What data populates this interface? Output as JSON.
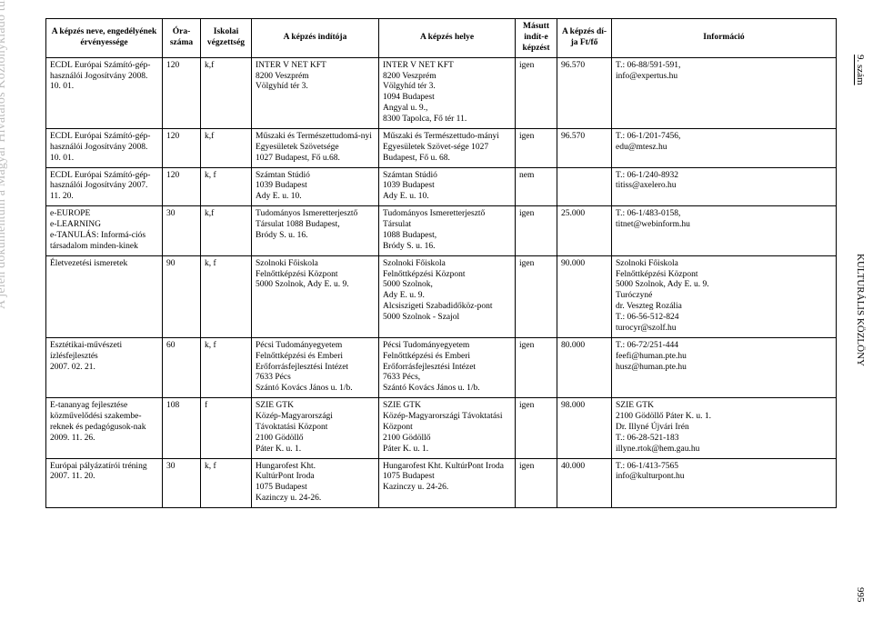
{
  "page": {
    "watermark": "A jelen dokumentum a Magyar Hivatalos Közlönykiadó tulajdona, további üzleti célú felhasználása tilos!",
    "right_top": "9. szám",
    "right_mid": "KULTURÁLIS KÖZLÖNY",
    "right_bottom": "995"
  },
  "headers": {
    "name": "A képzés neve, engedélyének érvényessége",
    "ora": "Óra-száma",
    "isk": "Iskolai végzettség",
    "indito": "A képzés indítója",
    "hely": "A képzés helye",
    "masutt": "Másutt indít-e képzést",
    "dij": "A képzés dí-ja Ft/fő",
    "info": "Információ"
  },
  "rows": [
    {
      "name": "ECDL Európai Számító-gép-használói Jogosítvány 2008. 10. 01.",
      "ora": "120",
      "isk": "k,f",
      "indito": "INTER V NET KFT\n8200 Veszprém\nVölgyhíd tér 3.",
      "hely": "INTER V NET KFT\n8200 Veszprém\nVölgyhíd tér 3.\n1094 Budapest\nAngyal u. 9.,\n8300 Tapolca, Fő tér 11.",
      "masutt": "igen",
      "dij": "96.570",
      "info": "T.: 06-88/591-591,\ninfo@expertus.hu"
    },
    {
      "name": "ECDL Európai Számító-gép-használói Jogosítvány 2008. 10. 01.",
      "ora": "120",
      "isk": "k,f",
      "indito": "Műszaki és Természettudomá-nyi Egyesületek Szövetsége\n1027 Budapest, Fő u.68.",
      "hely": "Műszaki és Természettudo-mányi Egyesületek Szövet-sége 1027 Budapest, Fő u. 68.",
      "masutt": "igen",
      "dij": "96.570",
      "info": "T.: 06-1/201-7456,\nedu@mtesz.hu"
    },
    {
      "name": "ECDL Európai Számító-gép-használói Jogosítvány 2007. 11. 20.",
      "ora": "120",
      "isk": "k, f",
      "indito": "Számtan Stúdió\n1039 Budapest\nAdy E. u. 10.",
      "hely": "Számtan Stúdió\n1039 Budapest\nAdy E. u. 10.",
      "masutt": "nem",
      "dij": "",
      "info": "T.: 06-1/240-8932\ntitiss@axelero.hu"
    },
    {
      "name": "e-EUROPE\ne-LEARNING\ne-TANULÁS: Informá-ciós társadalom minden-kinek",
      "ora": "30",
      "isk": "k,f",
      "indito": "Tudományos Ismeretterjesztő Társulat 1088 Budapest,\nBródy S. u. 16.",
      "hely": "Tudományos Ismeretterjesztő Társulat\n1088 Budapest,\nBródy S. u. 16.",
      "masutt": "igen",
      "dij": "25.000",
      "info": "T.: 06-1/483-0158,\ntitnet@webinform.hu"
    },
    {
      "name": "Életvezetési ismeretek",
      "ora": "90",
      "isk": "k, f",
      "indito": "Szolnoki Főiskola\nFelnőttképzési Központ\n5000 Szolnok, Ady E. u. 9.",
      "hely": "Szolnoki Főiskola\nFelnőttképzési Központ\n5000 Szolnok,\nAdy E. u. 9.\nAlcsiszigeti Szabadidőköz-pont\n5000 Szolnok - Szajol",
      "masutt": "igen",
      "dij": "90.000",
      "info": "Szolnoki Főiskola\nFelnőttképzési Központ\n5000 Szolnok, Ady E. u. 9.\nTuróczyné\ndr. Veszteg Rozália\nT.: 06-56-512-824\nturocyr@szolf.hu"
    },
    {
      "name": "Esztétikai-művészeti ízlésfejlesztés\n2007. 02. 21.",
      "ora": "60",
      "isk": "k, f",
      "indito": "Pécsi Tudományegyetem\nFelnőttképzési és Emberi Erőforrásfejlesztési Intézet\n7633 Pécs\nSzántó Kovács János u. 1/b.",
      "hely": "Pécsi Tudományegyetem\nFelnőttképzési és Emberi Erőforrásfejlesztési Intézet\n7633 Pécs,\nSzántó Kovács János u. 1/b.",
      "masutt": "igen",
      "dij": "80.000",
      "info": "T.: 06-72/251-444\nfeefi@human.pte.hu\nhusz@human.pte.hu"
    },
    {
      "name": "E-tananyag fejlesztése közművelődési szakembe-reknek és pedagógusok-nak\n2009. 11. 26.",
      "ora": "108",
      "isk": "f",
      "indito": "SZIE GTK\nKözép-Magyarországi Távoktatási Központ\n2100 Gödöllő\nPáter K. u. 1.",
      "hely": "SZIE GTK\nKözép-Magyarországi Távoktatási Központ\n2100 Gödöllő\nPáter K. u. 1.",
      "masutt": "igen",
      "dij": "98.000",
      "info": "SZIE GTK\n2100 Gödöllő Páter K. u. 1.\nDr. Illyné Újvári Irén\nT.: 06-28-521-183\nillyne.rtok@hem.gau.hu"
    },
    {
      "name": "Európai pályázatírói tréning\n2007. 11. 20.",
      "ora": "30",
      "isk": "k, f",
      "indito": "Hungarofest Kht.\nKultúrPont Iroda\n1075 Budapest\nKazinczy u. 24-26.",
      "hely": "Hungarofest Kht. KultúrPont Iroda\n1075 Budapest\nKazinczy u. 24-26.",
      "masutt": "igen",
      "dij": "40.000",
      "info": "T.: 06-1/413-7565\ninfo@kulturpont.hu"
    }
  ]
}
